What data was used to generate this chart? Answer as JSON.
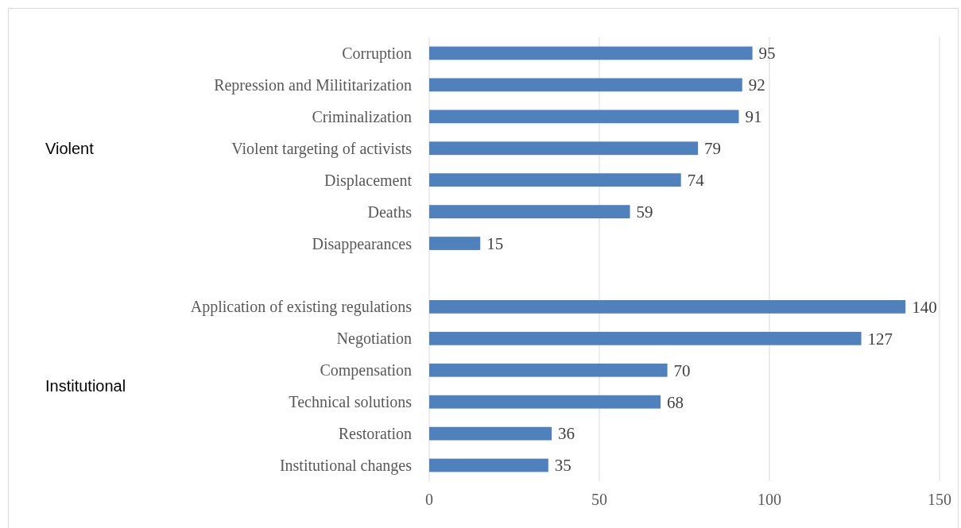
{
  "chart_data": {
    "type": "bar",
    "orientation": "horizontal",
    "categories": [
      "Corruption",
      "Repression and Milititarization",
      "Criminalization",
      "Violent targeting of activists",
      "Displacement",
      "Deaths",
      "Disappearances",
      null,
      "Application of existing regulations",
      "Negotiation",
      "Compensation",
      "Technical solutions",
      "Restoration",
      "Institutional changes"
    ],
    "values": [
      95,
      92,
      91,
      79,
      74,
      59,
      15,
      null,
      140,
      127,
      70,
      68,
      36,
      35
    ],
    "color": "#4f81bd",
    "data_labels": true,
    "xlim": [
      0,
      150
    ],
    "xticks": [
      0,
      50,
      100,
      150
    ],
    "grid": "x",
    "annotations": [
      "Violent",
      "Institutional"
    ]
  }
}
